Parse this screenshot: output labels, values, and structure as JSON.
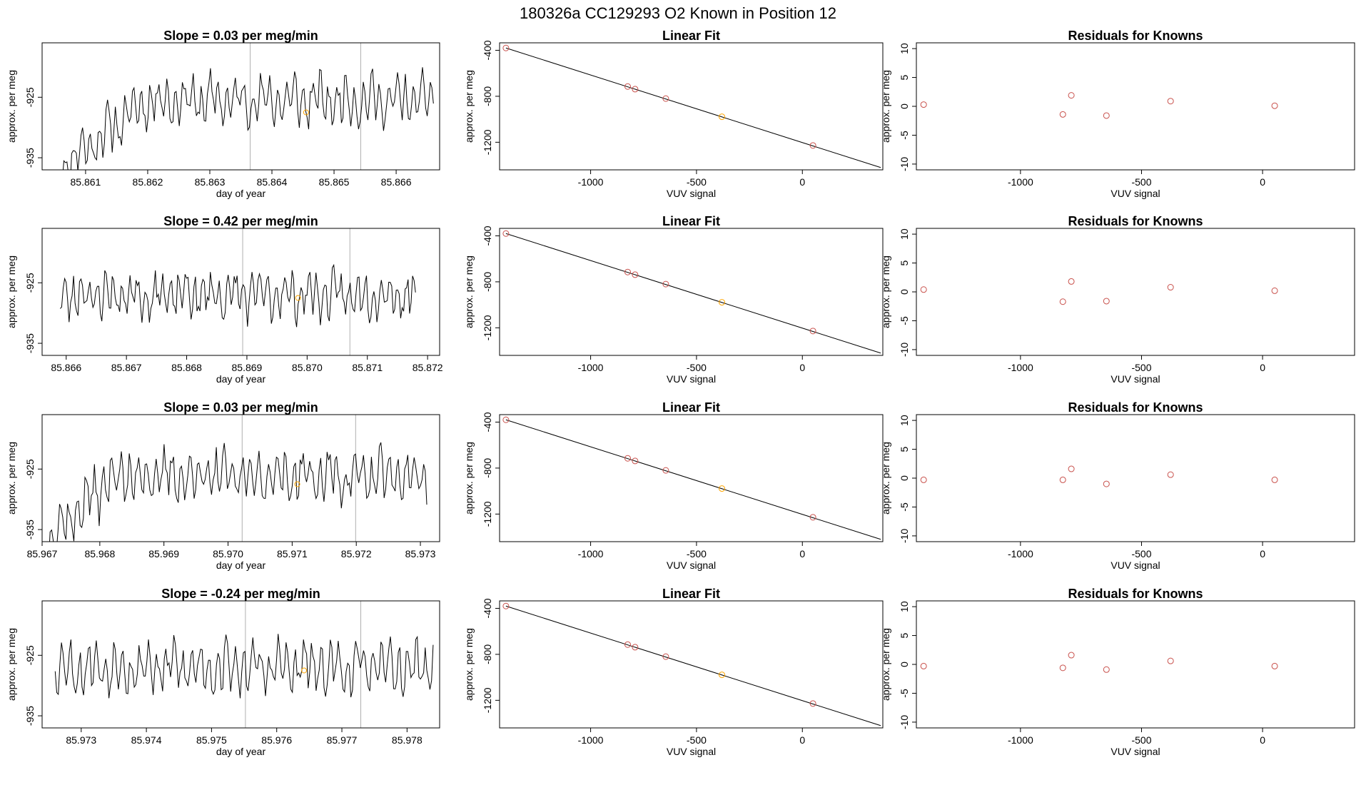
{
  "figure": {
    "title": "180326a      CC129293    O2 Known in Position  12"
  },
  "chart_data": [
    {
      "type": "line",
      "row": 0,
      "title": "Slope =  0.03  per meg/min",
      "xlabel": "day of year",
      "ylabel": "approx. per meg",
      "xlim": [
        85.8603,
        85.8667
      ],
      "ylim": [
        -937,
        -916
      ],
      "xticks": [
        85.861,
        85.862,
        85.863,
        85.864,
        85.865,
        85.866
      ],
      "xtick_labels": [
        "85.861",
        "85.862",
        "85.863",
        "85.864",
        "85.865",
        "85.866"
      ],
      "yticks": [
        -925,
        -935
      ],
      "ytick_labels": [
        "-925",
        "-935"
      ],
      "vlines": [
        85.86365,
        85.86543
      ],
      "highlight": {
        "x": 85.86455,
        "y": -927.5,
        "color": "#FFA500"
      },
      "start_x": 85.8606,
      "end_x": 85.8666,
      "start_y": -936.5,
      "level": -925.5,
      "ramp_end": 85.862,
      "amplitude": 3.2,
      "n": 240,
      "seed": 11
    },
    {
      "type": "scatter",
      "row": 0,
      "title": "Linear Fit",
      "xlabel": "VUV signal",
      "ylabel": "approx. per meg",
      "xlim": [
        -1430,
        380
      ],
      "ylim": [
        -1440,
        -335
      ],
      "xticks": [
        -1000,
        -500,
        0
      ],
      "xtick_labels": [
        "-1000",
        "-500",
        "0"
      ],
      "yticks": [
        -400,
        -800,
        -1200
      ],
      "ytick_labels": [
        "-400",
        "-800",
        "-1200"
      ],
      "fit_line": [
        [
          -1400,
          -380
        ],
        [
          370,
          -1420
        ]
      ],
      "points": [
        [
          -1400,
          -380
        ],
        [
          -825,
          -715
        ],
        [
          -790,
          -738
        ],
        [
          -645,
          -820
        ],
        [
          -380,
          -978
        ],
        [
          50,
          -1228
        ]
      ],
      "point_colors": [
        "#C8504B",
        "#C8504B",
        "#C8504B",
        "#C8504B",
        "#FFA500",
        "#C8504B"
      ]
    },
    {
      "type": "scatter",
      "row": 0,
      "title": "Residuals for Knowns",
      "xlabel": "VUV signal",
      "ylabel": "approx. per meg",
      "xlim": [
        -1430,
        380
      ],
      "ylim": [
        -11,
        11
      ],
      "xticks": [
        -1000,
        -500,
        0
      ],
      "xtick_labels": [
        "-1000",
        "-500",
        "0"
      ],
      "yticks": [
        10,
        5,
        0,
        -5,
        -10
      ],
      "ytick_labels": [
        "10",
        "5",
        "0",
        "-5",
        "-10"
      ],
      "points": [
        [
          -1400,
          0.3
        ],
        [
          -825,
          -1.4
        ],
        [
          -790,
          1.9
        ],
        [
          -645,
          -1.6
        ],
        [
          -380,
          0.9
        ],
        [
          50,
          0.1
        ]
      ],
      "point_colors": [
        "#C8504B",
        "#C8504B",
        "#C8504B",
        "#C8504B",
        "#C8504B",
        "#C8504B"
      ]
    },
    {
      "type": "line",
      "row": 1,
      "title": "Slope =  0.42  per meg/min",
      "xlabel": "day of year",
      "ylabel": "approx. per meg",
      "xlim": [
        85.8656,
        85.8722
      ],
      "ylim": [
        -937,
        -916
      ],
      "xticks": [
        85.866,
        85.867,
        85.868,
        85.869,
        85.87,
        85.871,
        85.872
      ],
      "xtick_labels": [
        "85.866",
        "85.867",
        "85.868",
        "85.869",
        "85.870",
        "85.871",
        "85.872"
      ],
      "yticks": [
        -925,
        -935
      ],
      "ytick_labels": [
        "-925",
        "-935"
      ],
      "vlines": [
        85.86893,
        85.87071
      ],
      "highlight": {
        "x": 85.86985,
        "y": -927.5,
        "color": "#FFA500"
      },
      "start_x": 85.8659,
      "end_x": 85.8718,
      "start_y": -928,
      "level": -927,
      "ramp_end": 85.8659,
      "amplitude": 3.0,
      "n": 240,
      "seed": 23
    },
    {
      "type": "scatter",
      "row": 1,
      "title": "Linear Fit",
      "xlabel": "VUV signal",
      "ylabel": "approx. per meg",
      "xlim": [
        -1430,
        380
      ],
      "ylim": [
        -1440,
        -335
      ],
      "xticks": [
        -1000,
        -500,
        0
      ],
      "xtick_labels": [
        "-1000",
        "-500",
        "0"
      ],
      "yticks": [
        -400,
        -800,
        -1200
      ],
      "ytick_labels": [
        "-400",
        "-800",
        "-1200"
      ],
      "fit_line": [
        [
          -1400,
          -380
        ],
        [
          370,
          -1420
        ]
      ],
      "points": [
        [
          -1400,
          -380
        ],
        [
          -825,
          -715
        ],
        [
          -790,
          -738
        ],
        [
          -645,
          -820
        ],
        [
          -380,
          -978
        ],
        [
          50,
          -1228
        ]
      ],
      "point_colors": [
        "#C8504B",
        "#C8504B",
        "#C8504B",
        "#C8504B",
        "#FFA500",
        "#C8504B"
      ]
    },
    {
      "type": "scatter",
      "row": 1,
      "title": "Residuals for Knowns",
      "xlabel": "VUV signal",
      "ylabel": "approx. per meg",
      "xlim": [
        -1430,
        380
      ],
      "ylim": [
        -11,
        11
      ],
      "xticks": [
        -1000,
        -500,
        0
      ],
      "xtick_labels": [
        "-1000",
        "-500",
        "0"
      ],
      "yticks": [
        10,
        5,
        0,
        -5,
        -10
      ],
      "ytick_labels": [
        "10",
        "5",
        "0",
        "-5",
        "-10"
      ],
      "points": [
        [
          -1400,
          0.4
        ],
        [
          -825,
          -1.7
        ],
        [
          -790,
          1.8
        ],
        [
          -645,
          -1.6
        ],
        [
          -380,
          0.8
        ],
        [
          50,
          0.2
        ]
      ],
      "point_colors": [
        "#C8504B",
        "#C8504B",
        "#C8504B",
        "#C8504B",
        "#C8504B",
        "#C8504B"
      ]
    },
    {
      "type": "line",
      "row": 2,
      "title": "Slope =  0.03  per meg/min",
      "xlabel": "day of year",
      "ylabel": "approx. per meg",
      "xlim": [
        85.9671,
        85.9733
      ],
      "ylim": [
        -937,
        -916
      ],
      "xticks": [
        85.9671,
        85.968,
        85.969,
        85.97,
        85.971,
        85.972,
        85.973
      ],
      "xtick_labels": [
        "85.967",
        "85.968",
        "85.969",
        "85.970",
        "85.971",
        "85.972",
        "85.973"
      ],
      "yticks": [
        -925,
        -935
      ],
      "ytick_labels": [
        "-925",
        "-935"
      ],
      "vlines": [
        85.97022,
        85.97199
      ],
      "highlight": {
        "x": 85.97108,
        "y": -927.5,
        "color": "#FFA500"
      },
      "start_x": 85.9672,
      "end_x": 85.9731,
      "start_y": -936.5,
      "level": -926.2,
      "ramp_end": 85.9682,
      "amplitude": 3.4,
      "n": 240,
      "seed": 37
    },
    {
      "type": "scatter",
      "row": 2,
      "title": "Linear Fit",
      "xlabel": "VUV signal",
      "ylabel": "approx. per meg",
      "xlim": [
        -1430,
        380
      ],
      "ylim": [
        -1440,
        -335
      ],
      "xticks": [
        -1000,
        -500,
        0
      ],
      "xtick_labels": [
        "-1000",
        "-500",
        "0"
      ],
      "yticks": [
        -400,
        -800,
        -1200
      ],
      "ytick_labels": [
        "-400",
        "-800",
        "-1200"
      ],
      "fit_line": [
        [
          -1400,
          -380
        ],
        [
          370,
          -1420
        ]
      ],
      "points": [
        [
          -1400,
          -380
        ],
        [
          -825,
          -715
        ],
        [
          -790,
          -738
        ],
        [
          -645,
          -820
        ],
        [
          -380,
          -978
        ],
        [
          50,
          -1228
        ]
      ],
      "point_colors": [
        "#C8504B",
        "#C8504B",
        "#C8504B",
        "#C8504B",
        "#FFA500",
        "#C8504B"
      ]
    },
    {
      "type": "scatter",
      "row": 2,
      "title": "Residuals for Knowns",
      "xlabel": "VUV signal",
      "ylabel": "approx. per meg",
      "xlim": [
        -1430,
        380
      ],
      "ylim": [
        -11,
        11
      ],
      "xticks": [
        -1000,
        -500,
        0
      ],
      "xtick_labels": [
        "-1000",
        "-500",
        "0"
      ],
      "yticks": [
        10,
        5,
        0,
        -5,
        -10
      ],
      "ytick_labels": [
        "10",
        "5",
        "0",
        "-5",
        "-10"
      ],
      "points": [
        [
          -1400,
          -0.3
        ],
        [
          -825,
          -0.3
        ],
        [
          -790,
          1.6
        ],
        [
          -645,
          -1.0
        ],
        [
          -380,
          0.6
        ],
        [
          50,
          -0.3
        ]
      ],
      "point_colors": [
        "#C8504B",
        "#C8504B",
        "#C8504B",
        "#C8504B",
        "#C8504B",
        "#C8504B"
      ]
    },
    {
      "type": "line",
      "row": 3,
      "title": "Slope =  -0.24  per meg/min",
      "xlabel": "day of year",
      "ylabel": "approx. per meg",
      "xlim": [
        85.9724,
        85.9785
      ],
      "ylim": [
        -937,
        -916
      ],
      "xticks": [
        85.973,
        85.974,
        85.975,
        85.976,
        85.977,
        85.978
      ],
      "xtick_labels": [
        "85.973",
        "85.974",
        "85.975",
        "85.976",
        "85.977",
        "85.978"
      ],
      "yticks": [
        -925,
        -935
      ],
      "ytick_labels": [
        "-925",
        "-935"
      ],
      "vlines": [
        85.97552,
        85.97729
      ],
      "highlight": {
        "x": 85.97642,
        "y": -927.5,
        "color": "#FFA500"
      },
      "start_x": 85.9726,
      "end_x": 85.9784,
      "start_y": -928,
      "level": -927,
      "ramp_end": 85.9726,
      "amplitude": 3.3,
      "n": 240,
      "seed": 53
    },
    {
      "type": "scatter",
      "row": 3,
      "title": "Linear Fit",
      "xlabel": "VUV signal",
      "ylabel": "approx. per meg",
      "xlim": [
        -1430,
        380
      ],
      "ylim": [
        -1440,
        -335
      ],
      "xticks": [
        -1000,
        -500,
        0
      ],
      "xtick_labels": [
        "-1000",
        "-500",
        "0"
      ],
      "yticks": [
        -400,
        -800,
        -1200
      ],
      "ytick_labels": [
        "-400",
        "-800",
        "-1200"
      ],
      "fit_line": [
        [
          -1400,
          -380
        ],
        [
          370,
          -1420
        ]
      ],
      "points": [
        [
          -1400,
          -380
        ],
        [
          -825,
          -715
        ],
        [
          -790,
          -738
        ],
        [
          -645,
          -820
        ],
        [
          -380,
          -978
        ],
        [
          50,
          -1228
        ]
      ],
      "point_colors": [
        "#C8504B",
        "#C8504B",
        "#C8504B",
        "#C8504B",
        "#FFA500",
        "#C8504B"
      ]
    },
    {
      "type": "scatter",
      "row": 3,
      "title": "Residuals for Knowns",
      "xlabel": "VUV signal",
      "ylabel": "approx. per meg",
      "xlim": [
        -1430,
        380
      ],
      "ylim": [
        -11,
        11
      ],
      "xticks": [
        -1000,
        -500,
        0
      ],
      "xtick_labels": [
        "-1000",
        "-500",
        "0"
      ],
      "yticks": [
        10,
        5,
        0,
        -5,
        -10
      ],
      "ytick_labels": [
        "10",
        "5",
        "0",
        "-5",
        "-10"
      ],
      "points": [
        [
          -1400,
          -0.3
        ],
        [
          -825,
          -0.6
        ],
        [
          -790,
          1.6
        ],
        [
          -645,
          -0.9
        ],
        [
          -380,
          0.6
        ],
        [
          50,
          -0.3
        ]
      ],
      "point_colors": [
        "#C8504B",
        "#C8504B",
        "#C8504B",
        "#C8504B",
        "#C8504B",
        "#C8504B"
      ]
    }
  ]
}
